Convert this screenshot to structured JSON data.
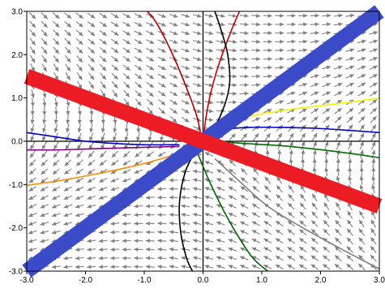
{
  "chart_data": {
    "type": "line",
    "title": "",
    "xlabel": "",
    "ylabel": "",
    "xlim": [
      -3.0,
      3.0
    ],
    "ylim": [
      -3.0,
      3.0
    ],
    "x_ticks": [
      "-3.0",
      "-2.0",
      "-1.0",
      "0.0",
      "1.0",
      "2.0",
      "3.0"
    ],
    "y_ticks": [
      "-3.0",
      "-2.0",
      "-1.0",
      "0.0",
      "1.0",
      "2.0",
      "3.0"
    ],
    "grid": false,
    "eigenlines": [
      {
        "color": "#3b4bc8",
        "x": [
          -3.0,
          3.0
        ],
        "y": [
          -3.0,
          3.0
        ]
      },
      {
        "color": "#ec1c24",
        "x": [
          -3.0,
          3.0
        ],
        "y": [
          1.5,
          -1.5
        ]
      }
    ],
    "vector_field": {
      "matrix": [
        [
          0.333,
          1.333
        ],
        [
          0.667,
          -0.333
        ]
      ],
      "x_range": [
        -2.9,
        2.9
      ],
      "y_range": [
        -2.9,
        2.9
      ],
      "step": 0.2,
      "color": "#808080"
    },
    "trajectories": [
      {
        "color": "#cc0000",
        "x": [
          0.02,
          0.05,
          0.12,
          0.25,
          0.45,
          0.62
        ],
        "y": [
          0.2,
          0.55,
          1.05,
          1.7,
          2.45,
          3.0
        ]
      },
      {
        "color": "#b00000",
        "x": [
          -0.03,
          -0.1,
          -0.3,
          -0.55,
          -0.8,
          -0.95
        ],
        "y": [
          0.05,
          0.55,
          1.3,
          2.1,
          2.75,
          3.0
        ]
      },
      {
        "color": "#000000",
        "x": [
          0.08,
          0.3,
          0.45,
          0.42,
          0.3,
          0.2
        ],
        "y": [
          0.12,
          0.6,
          1.3,
          2.0,
          2.6,
          3.0
        ]
      },
      {
        "color": "#000000",
        "x": [
          -0.1,
          -0.3,
          -0.4,
          -0.38,
          -0.28,
          -0.18
        ],
        "y": [
          -0.15,
          -0.7,
          -1.4,
          -2.1,
          -2.7,
          -3.0
        ]
      },
      {
        "color": "#f5f500",
        "x": [
          0.3,
          0.8,
          1.4,
          2.0,
          2.6,
          3.0
        ],
        "y": [
          0.4,
          0.58,
          0.72,
          0.82,
          0.92,
          1.0
        ]
      },
      {
        "color": "#0000cc",
        "x": [
          0.3,
          0.8,
          1.3,
          1.9,
          2.5,
          3.0
        ],
        "y": [
          0.28,
          0.32,
          0.32,
          0.3,
          0.25,
          0.2
        ]
      },
      {
        "color": "#006e00",
        "x": [
          0.2,
          0.7,
          1.3,
          1.9,
          2.5,
          3.0
        ],
        "y": [
          0.0,
          -0.05,
          -0.1,
          -0.18,
          -0.28,
          -0.38
        ]
      },
      {
        "color": "#808080",
        "x": [
          0.2,
          0.6,
          1.1,
          1.7,
          2.3,
          3.0
        ],
        "y": [
          -0.4,
          -0.9,
          -1.5,
          -2.0,
          -2.45,
          -2.95
        ]
      },
      {
        "color": "#006400",
        "x": [
          -0.1,
          0.1,
          0.35,
          0.6,
          0.85,
          1.1
        ],
        "y": [
          -0.25,
          -0.9,
          -1.6,
          -2.2,
          -2.7,
          -3.0
        ]
      },
      {
        "color": "#0000cc",
        "x": [
          -3.0,
          -2.5,
          -2.0,
          -1.5,
          -1.0,
          -0.4
        ],
        "y": [
          0.2,
          0.1,
          0.0,
          -0.05,
          -0.08,
          -0.08
        ]
      },
      {
        "color": "#800080",
        "x": [
          -3.0,
          -2.5,
          -2.0,
          -1.5,
          -1.0,
          -0.4
        ],
        "y": [
          -0.2,
          -0.2,
          -0.18,
          -0.16,
          -0.14,
          -0.12
        ]
      },
      {
        "color": "#ff8c00",
        "x": [
          -3.0,
          -2.4,
          -1.8,
          -1.2,
          -0.7,
          -0.2
        ],
        "y": [
          -1.02,
          -0.9,
          -0.75,
          -0.58,
          -0.4,
          -0.18
        ]
      }
    ]
  }
}
